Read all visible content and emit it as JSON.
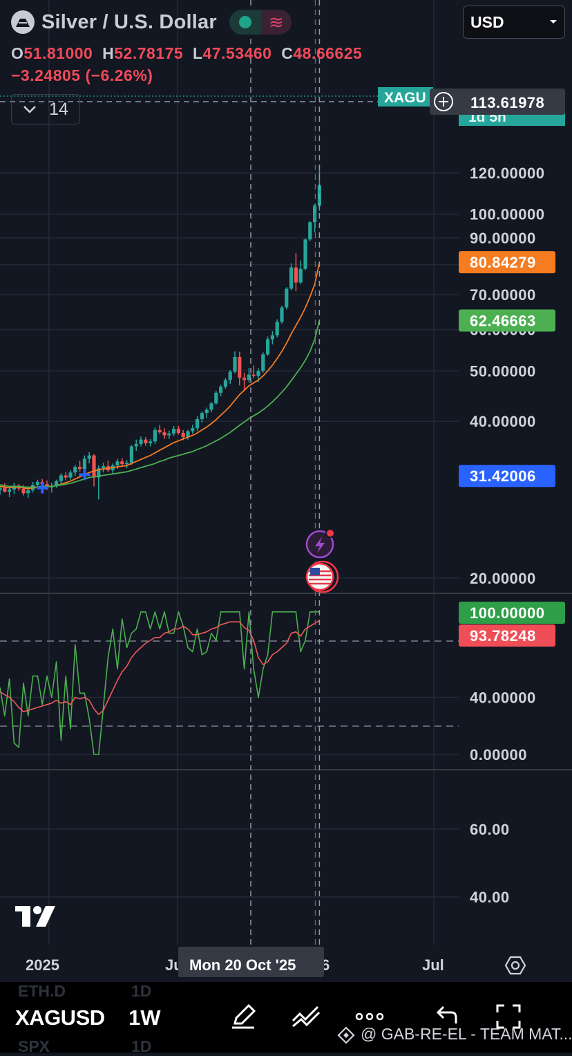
{
  "header": {
    "title": "Silver / U.S. Dollar",
    "ohlc": {
      "o_label": "O",
      "o": "51.81000",
      "h_label": "H",
      "h": "52.78175",
      "l_label": "L",
      "l": "47.53460",
      "c_label": "C",
      "c": "48.66625"
    },
    "change": "−3.24805 (−6.26%)",
    "indicator_count": "14",
    "wave_glyph": "≋"
  },
  "currency": "USD",
  "crosshair_date": "Mon 20 Oct '25",
  "crosshair_price": "113.61978",
  "symbol_tag": "XAGU",
  "countdown_tag": "1d 5h",
  "bottom_bar": {
    "symbol": "XAGUSD",
    "timeframe": "1W",
    "ghost_rows": [
      {
        "sym": "ETH.D",
        "tf": "1D"
      },
      {
        "sym": "SPX",
        "tf": "1D"
      }
    ],
    "watermark": "@ GAB-RE-EL - TEAM MAT..."
  },
  "colors": {
    "up": "#26a69a",
    "down": "#ef5350",
    "ema_fast": "#f57c21",
    "ema_slow": "#4caf50",
    "pane_green": "#4caf50",
    "pane_red": "#f05a5a",
    "blue": "#2962ff"
  },
  "chart_data": [
    {
      "type": "candlestick",
      "title": "Silver / U.S. Dollar",
      "x_ticks": [
        "2025",
        "Ju",
        "Mon 20 Oct '25",
        "Jul"
      ],
      "y_ticks": [
        20,
        40,
        50,
        60,
        70,
        90,
        100,
        120
      ],
      "y_range": [
        17,
        124
      ],
      "last_labels": [
        {
          "value": "113.61978",
          "role": "crosshair"
        },
        {
          "value": "80.84279",
          "role": "ema_fast"
        },
        {
          "value": "62.46663",
          "role": "ema_slow"
        },
        {
          "value": "31.42006",
          "role": "marker"
        }
      ],
      "candles": [
        [
          29.5,
          30.2,
          28.9,
          29.8
        ],
        [
          29.8,
          30.4,
          29.2,
          29.3
        ],
        [
          29.3,
          30.0,
          28.6,
          29.6
        ],
        [
          29.6,
          30.5,
          29.0,
          30.1
        ],
        [
          30.1,
          30.3,
          29.4,
          29.7
        ],
        [
          29.7,
          30.2,
          28.8,
          29.1
        ],
        [
          29.1,
          29.8,
          28.5,
          29.5
        ],
        [
          29.5,
          30.6,
          29.2,
          30.2
        ],
        [
          30.2,
          30.9,
          29.8,
          30.6
        ],
        [
          30.6,
          31.0,
          29.9,
          30.3
        ],
        [
          30.3,
          30.8,
          29.5,
          29.9
        ],
        [
          29.9,
          30.5,
          29.2,
          30.0
        ],
        [
          30.0,
          30.9,
          29.8,
          30.7
        ],
        [
          30.7,
          31.8,
          30.4,
          31.5
        ],
        [
          31.5,
          32.0,
          30.8,
          31.2
        ],
        [
          31.2,
          32.2,
          30.9,
          31.9
        ],
        [
          31.9,
          33.0,
          31.4,
          32.7
        ],
        [
          32.7,
          33.6,
          32.0,
          32.4
        ],
        [
          32.4,
          34.4,
          31.8,
          33.9
        ],
        [
          33.9,
          34.9,
          33.2,
          34.4
        ],
        [
          34.4,
          34.6,
          30.0,
          31.2
        ],
        [
          31.2,
          32.9,
          28.3,
          32.5
        ],
        [
          32.5,
          33.3,
          31.9,
          32.8
        ],
        [
          32.8,
          33.6,
          32.0,
          32.2
        ],
        [
          32.2,
          33.2,
          31.7,
          32.9
        ],
        [
          32.9,
          33.9,
          32.4,
          33.5
        ],
        [
          33.5,
          34.0,
          32.7,
          33.1
        ],
        [
          33.1,
          33.7,
          32.5,
          33.3
        ],
        [
          33.3,
          36.0,
          33.0,
          35.8
        ],
        [
          35.8,
          36.9,
          35.1,
          36.2
        ],
        [
          36.2,
          37.4,
          35.8,
          36.9
        ],
        [
          36.9,
          37.3,
          35.9,
          36.3
        ],
        [
          36.3,
          37.0,
          35.8,
          36.6
        ],
        [
          36.6,
          38.9,
          36.2,
          38.5
        ],
        [
          38.5,
          39.4,
          37.8,
          38.1
        ],
        [
          38.1,
          38.8,
          37.0,
          37.6
        ],
        [
          37.6,
          38.4,
          37.0,
          37.9
        ],
        [
          37.9,
          39.2,
          37.5,
          38.7
        ],
        [
          38.7,
          39.2,
          37.7,
          38.0
        ],
        [
          38.0,
          38.5,
          36.8,
          37.3
        ],
        [
          37.3,
          38.5,
          36.9,
          38.3
        ],
        [
          38.3,
          39.4,
          37.9,
          38.8
        ],
        [
          38.8,
          40.9,
          38.3,
          40.4
        ],
        [
          40.4,
          41.8,
          39.8,
          41.5
        ],
        [
          41.5,
          42.5,
          40.6,
          42.1
        ],
        [
          42.1,
          43.6,
          41.6,
          43.3
        ],
        [
          43.3,
          45.8,
          43.0,
          45.4
        ],
        [
          45.4,
          47.0,
          44.7,
          46.6
        ],
        [
          46.6,
          48.4,
          46.2,
          48.0
        ],
        [
          48.0,
          50.2,
          47.2,
          49.8
        ],
        [
          49.8,
          54.5,
          49.4,
          53.2
        ],
        [
          53.2,
          54.4,
          46.9,
          48.5
        ],
        [
          48.5,
          49.6,
          45.9,
          48.0
        ],
        [
          48.0,
          50.6,
          47.5,
          49.2
        ],
        [
          49.2,
          51.2,
          48.4,
          48.9
        ],
        [
          48.9,
          50.6,
          47.6,
          50.0
        ],
        [
          50.0,
          54.3,
          49.6,
          53.8
        ],
        [
          53.8,
          58.2,
          53.4,
          57.5
        ],
        [
          57.5,
          59.6,
          56.2,
          58.5
        ],
        [
          58.5,
          62.8,
          58.0,
          62.1
        ],
        [
          62.1,
          66.7,
          61.6,
          66.2
        ],
        [
          66.2,
          72.4,
          65.6,
          71.9
        ],
        [
          71.9,
          80.5,
          71.4,
          79.0
        ],
        [
          79.0,
          84.2,
          71.1,
          73.9
        ],
        [
          73.9,
          81.5,
          73.4,
          78.5
        ],
        [
          78.5,
          89.8,
          78.0,
          89.4
        ],
        [
          89.4,
          97.0,
          88.8,
          96.5
        ],
        [
          96.5,
          104.6,
          92.3,
          103.8
        ],
        [
          103.8,
          124.0,
          101.5,
          113.6
        ]
      ],
      "ema_fast": [
        30.0,
        29.9,
        29.8,
        29.9,
        29.9,
        29.8,
        29.7,
        29.8,
        29.9,
        30.0,
        30.0,
        30.0,
        30.1,
        30.3,
        30.5,
        30.7,
        31.0,
        31.3,
        31.6,
        31.9,
        32.1,
        32.3,
        32.4,
        32.5,
        32.6,
        32.7,
        32.8,
        32.9,
        33.2,
        33.5,
        33.8,
        34.1,
        34.4,
        34.8,
        35.2,
        35.6,
        36.0,
        36.4,
        36.7,
        37.0,
        37.3,
        37.6,
        38.0,
        38.5,
        39.0,
        39.6,
        40.3,
        41.1,
        41.9,
        42.8,
        43.9,
        45.0,
        45.9,
        46.8,
        47.4,
        48.0,
        48.9,
        50.0,
        51.3,
        52.8,
        54.5,
        56.5,
        58.9,
        61.1,
        63.4,
        66.1,
        69.4,
        73.3,
        80.8
      ],
      "ema_slow": [
        30.2,
        30.1,
        30.0,
        30.0,
        30.0,
        29.9,
        29.9,
        29.9,
        29.9,
        30.0,
        30.0,
        30.0,
        30.1,
        30.2,
        30.3,
        30.4,
        30.6,
        30.8,
        31.0,
        31.2,
        31.3,
        31.4,
        31.5,
        31.6,
        31.7,
        31.8,
        31.9,
        32.0,
        32.2,
        32.4,
        32.6,
        32.8,
        33.0,
        33.2,
        33.5,
        33.7,
        34.0,
        34.2,
        34.4,
        34.6,
        34.8,
        35.0,
        35.3,
        35.6,
        35.9,
        36.3,
        36.7,
        37.1,
        37.6,
        38.1,
        38.7,
        39.3,
        39.9,
        40.5,
        41.0,
        41.5,
        42.1,
        42.8,
        43.6,
        44.5,
        45.5,
        46.6,
        47.9,
        49.3,
        50.7,
        52.4,
        54.5,
        57.5,
        62.5
      ]
    },
    {
      "type": "line",
      "y_ticks": [
        0,
        40,
        100
      ],
      "y_range": [
        0,
        100
      ],
      "last_labels": [
        {
          "value": "100.00000",
          "role": "green"
        },
        {
          "value": "93.78248",
          "role": "red"
        }
      ],
      "series": [
        {
          "values": [
            47,
            27,
            53,
            8,
            5,
            50,
            27,
            55,
            55,
            35,
            55,
            40,
            65,
            10,
            55,
            18,
            77,
            43,
            43,
            25,
            0,
            0,
            33,
            68,
            88,
            60,
            95,
            75,
            85,
            88,
            100,
            100,
            88,
            100,
            88,
            100,
            85,
            85,
            100,
            90,
            75,
            72,
            88,
            70,
            72,
            85,
            80,
            100,
            100,
            100,
            100,
            100,
            60,
            100,
            60,
            40,
            60,
            70,
            100,
            100,
            100,
            100,
            100,
            100,
            72,
            80,
            100,
            100,
            100
          ]
        },
        {
          "values": [
            44,
            42,
            40,
            37,
            33,
            30,
            31,
            32,
            33,
            34,
            35,
            36,
            38,
            36,
            37,
            35,
            40,
            39,
            40,
            38,
            32,
            28,
            31,
            38,
            45,
            52,
            58,
            62,
            68,
            72,
            75,
            78,
            80,
            82,
            82,
            85,
            86,
            88,
            88,
            90,
            88,
            84,
            84,
            85,
            86,
            88,
            89,
            91,
            92,
            93,
            93,
            93,
            89,
            87,
            80,
            68,
            63,
            65,
            70,
            72,
            75,
            78,
            85,
            86,
            83,
            88,
            90,
            92,
            94
          ]
        }
      ]
    },
    {
      "type": "line",
      "y_ticks": [
        40,
        60
      ],
      "series": []
    }
  ]
}
